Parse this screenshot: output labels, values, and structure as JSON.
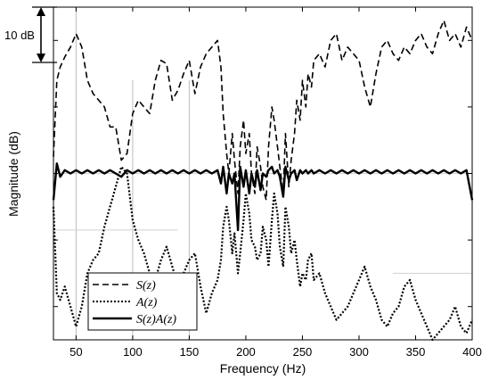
{
  "chart_data": {
    "type": "line",
    "title": "",
    "xlabel": "Frequency (Hz)",
    "ylabel": "Magnitude (dB)",
    "xlim": [
      30,
      400
    ],
    "ylim": [
      0,
      100
    ],
    "x_ticks": [
      50,
      100,
      150,
      200,
      250,
      300,
      350,
      400
    ],
    "x_tick_labels": [
      "50",
      "100",
      "150",
      "200",
      "250",
      "300",
      "350",
      "400"
    ],
    "y_ticks": [
      10,
      30,
      50,
      70,
      90
    ],
    "y_tick_labels": [
      "",
      "",
      "",
      "",
      ""
    ],
    "scale_annotation": "10 dB",
    "grid": true,
    "legend_position": "bottom-left",
    "series": [
      {
        "name": "S(z)",
        "style": "dashed",
        "x": [
          30,
          33,
          36,
          40,
          45,
          50,
          55,
          60,
          65,
          70,
          75,
          80,
          85,
          90,
          95,
          100,
          105,
          110,
          115,
          120,
          125,
          130,
          135,
          140,
          145,
          150,
          155,
          160,
          165,
          170,
          175,
          178,
          180,
          183,
          185,
          188,
          190,
          193,
          195,
          198,
          200,
          203,
          205,
          208,
          210,
          213,
          215,
          218,
          220,
          223,
          225,
          228,
          230,
          233,
          235,
          238,
          240,
          243,
          245,
          248,
          250,
          253,
          255,
          258,
          260,
          265,
          270,
          275,
          280,
          285,
          290,
          295,
          300,
          305,
          310,
          315,
          320,
          325,
          330,
          335,
          340,
          345,
          350,
          355,
          360,
          365,
          370,
          375,
          380,
          385,
          390,
          395,
          400
        ],
        "values": [
          55,
          78,
          82,
          85,
          88,
          92,
          88,
          78,
          74,
          72,
          70,
          64,
          64,
          54,
          56,
          68,
          72,
          70,
          68,
          78,
          84,
          83,
          72,
          75,
          80,
          84,
          74,
          82,
          86,
          88,
          90,
          82,
          68,
          56,
          50,
          62,
          54,
          44,
          58,
          66,
          56,
          62,
          50,
          44,
          58,
          52,
          46,
          42,
          58,
          70,
          66,
          58,
          52,
          44,
          62,
          46,
          54,
          62,
          72,
          66,
          78,
          70,
          80,
          76,
          84,
          86,
          82,
          90,
          92,
          84,
          88,
          86,
          84,
          76,
          70,
          80,
          88,
          90,
          86,
          84,
          88,
          86,
          90,
          92,
          88,
          86,
          92,
          96,
          90,
          92,
          88,
          94,
          90
        ]
      },
      {
        "name": "A(z)",
        "style": "dotted",
        "x": [
          30,
          33,
          36,
          40,
          45,
          50,
          55,
          60,
          65,
          70,
          75,
          80,
          85,
          90,
          95,
          100,
          105,
          110,
          115,
          120,
          125,
          130,
          135,
          140,
          145,
          150,
          155,
          160,
          165,
          170,
          175,
          178,
          180,
          183,
          185,
          188,
          190,
          193,
          195,
          198,
          200,
          203,
          205,
          208,
          210,
          213,
          215,
          218,
          220,
          223,
          225,
          228,
          230,
          233,
          235,
          238,
          240,
          243,
          245,
          248,
          250,
          253,
          255,
          258,
          260,
          265,
          270,
          275,
          280,
          285,
          290,
          295,
          300,
          305,
          310,
          315,
          320,
          325,
          330,
          335,
          340,
          345,
          350,
          355,
          360,
          365,
          370,
          375,
          380,
          385,
          390,
          395,
          400
        ],
        "values": [
          40,
          14,
          12,
          16,
          10,
          4,
          10,
          20,
          24,
          26,
          34,
          40,
          46,
          52,
          50,
          36,
          30,
          26,
          20,
          18,
          24,
          28,
          22,
          16,
          20,
          24,
          26,
          16,
          8,
          14,
          18,
          24,
          34,
          40,
          36,
          26,
          32,
          20,
          26,
          36,
          44,
          38,
          30,
          28,
          24,
          26,
          34,
          30,
          22,
          36,
          44,
          38,
          28,
          22,
          40,
          34,
          26,
          30,
          24,
          16,
          20,
          18,
          24,
          26,
          18,
          20,
          14,
          10,
          6,
          8,
          10,
          14,
          18,
          22,
          16,
          12,
          6,
          4,
          8,
          10,
          16,
          18,
          12,
          8,
          4,
          0,
          2,
          4,
          6,
          10,
          4,
          2,
          6
        ]
      },
      {
        "name": "S(z)A(z)",
        "style": "solid",
        "x": [
          30,
          33,
          36,
          40,
          45,
          50,
          55,
          60,
          65,
          70,
          75,
          80,
          85,
          90,
          95,
          100,
          105,
          110,
          115,
          120,
          125,
          130,
          135,
          140,
          145,
          150,
          155,
          160,
          165,
          170,
          175,
          178,
          180,
          183,
          185,
          188,
          190,
          193,
          195,
          198,
          200,
          203,
          205,
          208,
          210,
          213,
          215,
          218,
          220,
          223,
          225,
          228,
          230,
          233,
          235,
          238,
          240,
          243,
          245,
          248,
          250,
          253,
          255,
          258,
          260,
          265,
          270,
          275,
          280,
          285,
          290,
          295,
          300,
          305,
          310,
          315,
          320,
          325,
          330,
          335,
          340,
          345,
          350,
          355,
          360,
          365,
          370,
          375,
          380,
          385,
          390,
          395,
          400
        ],
        "values": [
          42,
          53,
          49,
          51,
          50,
          51,
          50,
          51,
          50,
          51,
          50,
          51,
          50,
          49,
          51,
          50,
          51,
          50,
          51,
          50,
          51,
          50,
          51,
          50,
          51,
          50,
          51,
          50,
          51,
          50,
          51,
          47,
          52,
          44,
          50,
          47,
          50,
          33,
          52,
          46,
          51,
          44,
          50,
          46,
          51,
          45,
          50,
          49,
          51,
          52,
          50,
          51,
          49,
          43,
          52,
          48,
          50,
          51,
          48,
          51,
          50,
          51,
          50,
          51,
          50,
          51,
          50,
          51,
          50,
          51,
          50,
          51,
          50,
          51,
          50,
          51,
          50,
          51,
          50,
          51,
          50,
          51,
          50,
          51,
          50,
          51,
          50,
          51,
          50,
          51,
          50,
          51,
          42
        ]
      }
    ]
  },
  "legend": {
    "entries": [
      "S(z)",
      "A(z)",
      "S(z)A(z)"
    ]
  }
}
